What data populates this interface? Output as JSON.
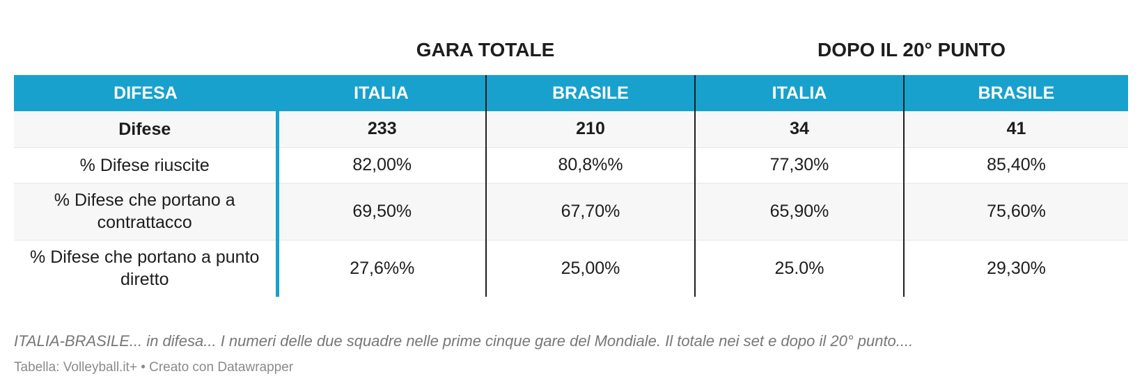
{
  "chart_data": {
    "type": "table",
    "group_headers": [
      "GARA TOTALE",
      "DOPO IL 20° PUNTO"
    ],
    "columns": [
      "DIFESA",
      "ITALIA",
      "BRASILE",
      "ITALIA",
      "BRASILE"
    ],
    "rows": [
      [
        "Difese",
        "233",
        "210",
        "34",
        "41"
      ],
      [
        "% Difese riuscite",
        "82,00%",
        "80,8%%",
        "77,30%",
        "85,40%"
      ],
      [
        "% Difese che portano a contrattacco",
        "69,50%",
        "67,70%",
        "65,90%",
        "75,60%"
      ],
      [
        "% Difese che portano a punto diretto",
        "27,6%%",
        "25,00%",
        "25.0%",
        "29,30%"
      ]
    ],
    "notes": "ITALIA-BRASILE... in difesa... I numeri delle due squadre nelle prime cinque gare del Mondiale. Il totale nei set e dopo il 20° punto....",
    "source": "Tabella: Volleyball.it+  • Creato con Datawrapper",
    "colors": {
      "header_bg": "#18a1cd",
      "header_text": "#ffffff",
      "row_shade": "#f7f7f7",
      "separator": "#1d1d1d"
    }
  }
}
